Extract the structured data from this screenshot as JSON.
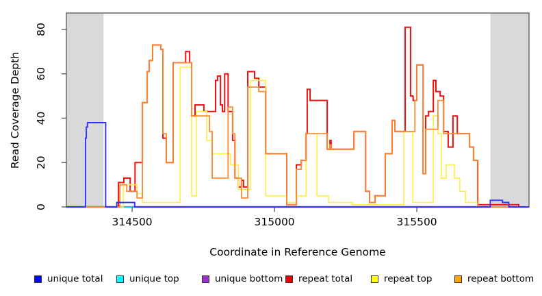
{
  "chart_data": {
    "type": "line",
    "subtype": "step",
    "title": "",
    "xlabel": "Coordinate in Reference Genome",
    "ylabel": "Read Coverage Depth",
    "xlim": [
      314269,
      315894
    ],
    "ylim": [
      0,
      87.4
    ],
    "xticks": [
      314500,
      315000,
      315500
    ],
    "yticks": [
      0,
      20,
      40,
      60,
      80
    ],
    "grid": false,
    "legend_position": "bottom",
    "plot_bg": "#ffffff",
    "shaded_regions": [
      {
        "name": "left-gray-band",
        "x0": 314269,
        "x1": 314401,
        "color": "#d9d9d9"
      },
      {
        "name": "right-gray-band",
        "x0": 315757,
        "x1": 315894,
        "color": "#d9d9d9"
      }
    ],
    "legend": [
      {
        "id": "unique_total",
        "label": "unique total",
        "color": "#0000ff"
      },
      {
        "id": "unique_top",
        "label": "unique top",
        "color": "#00ffff"
      },
      {
        "id": "unique_bottom",
        "label": "unique bottom",
        "color": "#9932cc"
      },
      {
        "id": "repeat_total",
        "label": "repeat total",
        "color": "#ee0000"
      },
      {
        "id": "repeat_top",
        "label": "repeat top",
        "color": "#ffff00"
      },
      {
        "id": "repeat_bottom",
        "label": "repeat bottom",
        "color": "#ffa500"
      }
    ],
    "series": [
      {
        "id": "unique_bottom",
        "name": "unique bottom",
        "color": "#8a5ae0",
        "width": 2.4,
        "points": [
          [
            314269,
            0
          ],
          [
            315894,
            0
          ]
        ]
      },
      {
        "id": "unique_top",
        "name": "unique top",
        "color": "#00dddd",
        "width": 1.5,
        "points": [
          [
            314269,
            0
          ],
          [
            315894,
            0
          ]
        ]
      },
      {
        "id": "overlap_green",
        "name": "baseline overlap segment",
        "color": "#8cc97f",
        "width": 1.6,
        "in_legend": false,
        "points": [
          [
            314269,
            0.35
          ],
          [
            314401,
            0.35
          ]
        ]
      },
      {
        "id": "repeat_total",
        "name": "repeat total",
        "color": "#f01010",
        "width": 2,
        "points": [
          [
            314269,
            0
          ],
          [
            314452,
            11
          ],
          [
            314471,
            13
          ],
          [
            314493,
            7
          ],
          [
            314510,
            20
          ],
          [
            314536,
            47
          ],
          [
            314553,
            61
          ],
          [
            314560,
            66
          ],
          [
            314572,
            73
          ],
          [
            314601,
            71
          ],
          [
            314608,
            31
          ],
          [
            314620,
            20
          ],
          [
            314644,
            65
          ],
          [
            314688,
            70
          ],
          [
            314702,
            65
          ],
          [
            314709,
            41
          ],
          [
            314721,
            46
          ],
          [
            314752,
            43
          ],
          [
            314793,
            57
          ],
          [
            314800,
            59
          ],
          [
            314810,
            46
          ],
          [
            314817,
            43
          ],
          [
            314825,
            60
          ],
          [
            314837,
            43
          ],
          [
            314853,
            30
          ],
          [
            314861,
            13
          ],
          [
            314873,
            9
          ],
          [
            314884,
            12
          ],
          [
            314891,
            9
          ],
          [
            314906,
            61
          ],
          [
            314930,
            58
          ],
          [
            314945,
            54
          ],
          [
            314969,
            24
          ],
          [
            315043,
            1
          ],
          [
            315077,
            19
          ],
          [
            315094,
            21
          ],
          [
            315111,
            33
          ],
          [
            315115,
            53
          ],
          [
            315125,
            48
          ],
          [
            315185,
            26
          ],
          [
            315195,
            30
          ],
          [
            315199,
            26
          ],
          [
            315279,
            34
          ],
          [
            315320,
            7
          ],
          [
            315334,
            2
          ],
          [
            315353,
            5
          ],
          [
            315389,
            24
          ],
          [
            315413,
            39
          ],
          [
            315423,
            34
          ],
          [
            315459,
            81
          ],
          [
            315478,
            50
          ],
          [
            315487,
            48
          ],
          [
            315500,
            64
          ],
          [
            315522,
            15
          ],
          [
            315531,
            41
          ],
          [
            315541,
            43
          ],
          [
            315558,
            57
          ],
          [
            315567,
            52
          ],
          [
            315582,
            50
          ],
          [
            315594,
            34
          ],
          [
            315610,
            27
          ],
          [
            315627,
            41
          ],
          [
            315642,
            33
          ],
          [
            315685,
            27
          ],
          [
            315699,
            21
          ],
          [
            315714,
            1
          ],
          [
            315858,
            0
          ],
          [
            315894,
            0
          ]
        ]
      },
      {
        "id": "repeat_top",
        "name": "repeat top",
        "color": "#ffee44",
        "width": 1.6,
        "points": [
          [
            314269,
            0
          ],
          [
            314469,
            10
          ],
          [
            314517,
            6
          ],
          [
            314536,
            2
          ],
          [
            314668,
            63
          ],
          [
            314709,
            5
          ],
          [
            314726,
            43
          ],
          [
            314762,
            30
          ],
          [
            314781,
            24
          ],
          [
            314846,
            19
          ],
          [
            314873,
            8
          ],
          [
            314916,
            57
          ],
          [
            314969,
            5
          ],
          [
            315043,
            2
          ],
          [
            315077,
            5
          ],
          [
            315111,
            33
          ],
          [
            315149,
            5
          ],
          [
            315190,
            2
          ],
          [
            315274,
            1
          ],
          [
            315454,
            34
          ],
          [
            315486,
            2
          ],
          [
            315558,
            41
          ],
          [
            315574,
            33
          ],
          [
            315586,
            13
          ],
          [
            315603,
            19
          ],
          [
            315632,
            13
          ],
          [
            315651,
            7
          ],
          [
            315671,
            2
          ],
          [
            315714,
            0
          ],
          [
            315894,
            0
          ]
        ]
      },
      {
        "id": "repeat_bottom",
        "name": "repeat bottom",
        "color": "#fb8b33",
        "width": 1.8,
        "points": [
          [
            314269,
            0
          ],
          [
            314457,
            10
          ],
          [
            314481,
            7
          ],
          [
            314517,
            4
          ],
          [
            314536,
            47
          ],
          [
            314553,
            61
          ],
          [
            314560,
            66
          ],
          [
            314572,
            73
          ],
          [
            314601,
            71
          ],
          [
            314608,
            33
          ],
          [
            314620,
            20
          ],
          [
            314644,
            65
          ],
          [
            314709,
            41
          ],
          [
            314772,
            34
          ],
          [
            314781,
            13
          ],
          [
            314837,
            45
          ],
          [
            314853,
            33
          ],
          [
            314861,
            13
          ],
          [
            314884,
            4
          ],
          [
            314906,
            54
          ],
          [
            314945,
            52
          ],
          [
            314969,
            24
          ],
          [
            315043,
            1
          ],
          [
            315077,
            17
          ],
          [
            315094,
            21
          ],
          [
            315111,
            33
          ],
          [
            315185,
            26
          ],
          [
            315195,
            28
          ],
          [
            315199,
            26
          ],
          [
            315279,
            34
          ],
          [
            315320,
            7
          ],
          [
            315334,
            2
          ],
          [
            315353,
            5
          ],
          [
            315389,
            24
          ],
          [
            315413,
            39
          ],
          [
            315423,
            34
          ],
          [
            315493,
            48
          ],
          [
            315500,
            64
          ],
          [
            315522,
            15
          ],
          [
            315531,
            35
          ],
          [
            315574,
            48
          ],
          [
            315594,
            33
          ],
          [
            315685,
            27
          ],
          [
            315699,
            21
          ],
          [
            315715,
            0
          ],
          [
            315894,
            0
          ]
        ]
      },
      {
        "id": "unique_total",
        "name": "unique total",
        "color": "#3032ff",
        "width": 1.9,
        "points": [
          [
            314269,
            0
          ],
          [
            314336,
            31
          ],
          [
            314339,
            36
          ],
          [
            314343,
            38
          ],
          [
            314407,
            0
          ],
          [
            314446,
            2
          ],
          [
            314509,
            0
          ],
          [
            315758,
            3
          ],
          [
            315801,
            2
          ],
          [
            315823,
            0
          ],
          [
            315894,
            0
          ]
        ]
      }
    ]
  },
  "layout_text": {
    "xtick_labels": [
      "314500",
      "315000",
      "315500"
    ],
    "ytick_labels": [
      "0",
      "20",
      "40",
      "60",
      "80"
    ]
  }
}
